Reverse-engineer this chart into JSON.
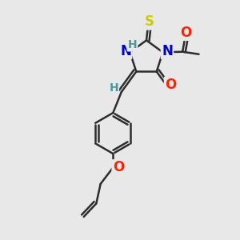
{
  "bg_color": "#e8e8e8",
  "bond_color": "#2d2d2d",
  "bond_lw": 1.8,
  "atoms": {
    "S": {
      "color": "#cccc00",
      "fontsize": 12
    },
    "O": {
      "color": "#ff2200",
      "fontsize": 12
    },
    "N": {
      "color": "#0000cc",
      "fontsize": 12
    },
    "H": {
      "color": "#4a9999",
      "fontsize": 10
    }
  }
}
